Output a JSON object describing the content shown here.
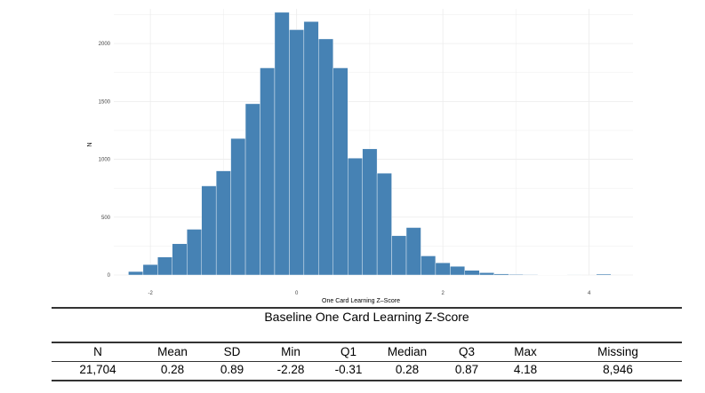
{
  "chart_data": {
    "type": "bar",
    "title": "",
    "xlabel": "One Card Learning Z–Score",
    "ylabel": "N",
    "xlim": [
      -2.5,
      4.6
    ],
    "ylim": [
      0,
      2300
    ],
    "bin_width": 0.2,
    "x_ticks": [
      -2,
      0,
      2,
      4
    ],
    "x_tick_labels": [
      "-2",
      "0",
      "2",
      "4"
    ],
    "y_ticks": [
      0,
      500,
      1000,
      1500,
      2000
    ],
    "y_tick_labels": [
      "0",
      "500",
      "1000",
      "1500",
      "2000"
    ],
    "grid": true,
    "color": "#4682B4",
    "bins": [
      {
        "x": -2.2,
        "value": 30
      },
      {
        "x": -2.0,
        "value": 90
      },
      {
        "x": -1.8,
        "value": 155
      },
      {
        "x": -1.6,
        "value": 270
      },
      {
        "x": -1.4,
        "value": 395
      },
      {
        "x": -1.2,
        "value": 770
      },
      {
        "x": -1.0,
        "value": 900
      },
      {
        "x": -0.8,
        "value": 1180
      },
      {
        "x": -0.6,
        "value": 1480
      },
      {
        "x": -0.4,
        "value": 1790
      },
      {
        "x": -0.2,
        "value": 2270
      },
      {
        "x": 0.0,
        "value": 2120
      },
      {
        "x": 0.2,
        "value": 2190
      },
      {
        "x": 0.4,
        "value": 2040
      },
      {
        "x": 0.6,
        "value": 1790
      },
      {
        "x": 0.8,
        "value": 1010
      },
      {
        "x": 1.0,
        "value": 1090
      },
      {
        "x": 1.2,
        "value": 880
      },
      {
        "x": 1.4,
        "value": 340
      },
      {
        "x": 1.6,
        "value": 410
      },
      {
        "x": 1.8,
        "value": 165
      },
      {
        "x": 2.0,
        "value": 105
      },
      {
        "x": 2.2,
        "value": 75
      },
      {
        "x": 2.4,
        "value": 40
      },
      {
        "x": 2.6,
        "value": 20
      },
      {
        "x": 2.8,
        "value": 10
      },
      {
        "x": 3.0,
        "value": 6
      },
      {
        "x": 3.2,
        "value": 4
      },
      {
        "x": 3.4,
        "value": 3
      },
      {
        "x": 3.6,
        "value": 2
      },
      {
        "x": 3.8,
        "value": 1
      },
      {
        "x": 4.0,
        "value": 0
      },
      {
        "x": 4.2,
        "value": 8
      }
    ]
  },
  "table": {
    "title": "Baseline One Card Learning Z-Score",
    "headers": [
      "N",
      "Mean",
      "SD",
      "Min",
      "Q1",
      "Median",
      "Q3",
      "Max",
      "Missing"
    ],
    "values": [
      "21,704",
      "0.28",
      "0.89",
      "-2.28",
      "-0.31",
      "0.28",
      "0.87",
      "4.18",
      "8,946"
    ]
  }
}
